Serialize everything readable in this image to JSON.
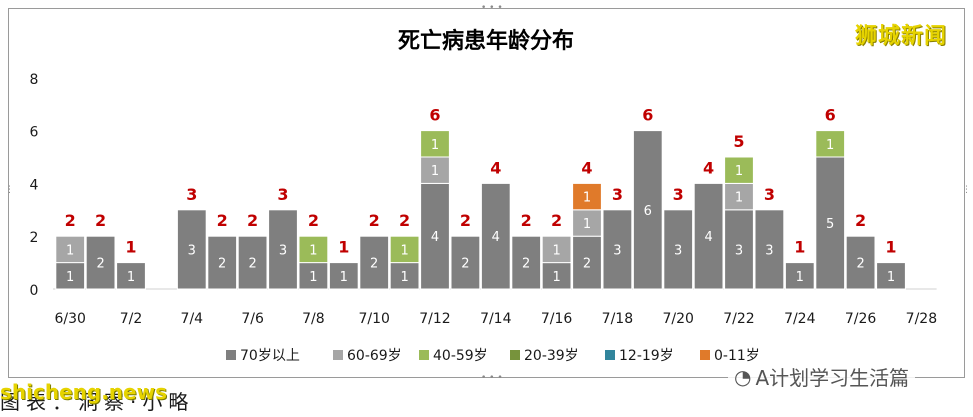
{
  "brand": "狮城新闻",
  "watermark": "shicheng.news",
  "footer_left": "图表：洞察·小略",
  "footer_right": "A计划学习生活篇",
  "chart_data": {
    "type": "bar",
    "stacked": true,
    "title": "死亡病患年龄分布",
    "xlabel": "",
    "ylabel": "",
    "ylim": [
      0,
      8
    ],
    "yticks": [
      0,
      2,
      4,
      6,
      8
    ],
    "grid": false,
    "legend": "bottom",
    "categories": [
      "6/30",
      "7/1",
      "7/2",
      "7/3",
      "7/4",
      "7/5",
      "7/6",
      "7/7",
      "7/8",
      "7/9",
      "7/10",
      "7/11",
      "7/12",
      "7/13",
      "7/14",
      "7/15",
      "7/16",
      "7/17",
      "7/18",
      "7/19",
      "7/20",
      "7/21",
      "7/22",
      "7/23",
      "7/24",
      "7/25",
      "7/26",
      "7/27",
      "7/28"
    ],
    "tick_labels": [
      "6/30",
      "",
      "7/2",
      "",
      "7/4",
      "",
      "7/6",
      "",
      "7/8",
      "",
      "7/10",
      "",
      "7/12",
      "",
      "7/14",
      "",
      "7/16",
      "",
      "7/18",
      "",
      "7/20",
      "",
      "7/22",
      "",
      "7/24",
      "",
      "7/26",
      "",
      "7/28"
    ],
    "totals": [
      2,
      2,
      1,
      null,
      3,
      2,
      2,
      3,
      2,
      1,
      2,
      2,
      6,
      2,
      4,
      2,
      2,
      4,
      3,
      6,
      3,
      4,
      5,
      3,
      1,
      6,
      2,
      1,
      null
    ],
    "series": [
      {
        "name": "70岁以上",
        "color": "#7f7f7f",
        "values": [
          1,
          2,
          1,
          0,
          3,
          2,
          2,
          3,
          1,
          1,
          2,
          1,
          4,
          2,
          4,
          2,
          1,
          2,
          3,
          6,
          3,
          4,
          3,
          3,
          1,
          5,
          2,
          1,
          0
        ]
      },
      {
        "name": "60-69岁",
        "color": "#a6a6a6",
        "values": [
          1,
          0,
          0,
          0,
          0,
          0,
          0,
          0,
          0,
          0,
          0,
          0,
          1,
          0,
          0,
          0,
          1,
          1,
          0,
          0,
          0,
          0,
          1,
          0,
          0,
          0,
          0,
          0,
          0
        ]
      },
      {
        "name": "40-59岁",
        "color": "#9bbb59",
        "values": [
          0,
          0,
          0,
          0,
          0,
          0,
          0,
          0,
          1,
          0,
          0,
          1,
          1,
          0,
          0,
          0,
          0,
          0,
          0,
          0,
          0,
          0,
          1,
          0,
          0,
          1,
          0,
          0,
          0
        ]
      },
      {
        "name": "20-39岁",
        "color": "#77933c",
        "values": [
          0,
          0,
          0,
          0,
          0,
          0,
          0,
          0,
          0,
          0,
          0,
          0,
          0,
          0,
          0,
          0,
          0,
          0,
          0,
          0,
          0,
          0,
          0,
          0,
          0,
          0,
          0,
          0,
          0
        ]
      },
      {
        "name": "12-19岁",
        "color": "#31859c",
        "values": [
          0,
          0,
          0,
          0,
          0,
          0,
          0,
          0,
          0,
          0,
          0,
          0,
          0,
          0,
          0,
          0,
          0,
          0,
          0,
          0,
          0,
          0,
          0,
          0,
          0,
          0,
          0,
          0,
          0
        ]
      },
      {
        "name": "0-11岁",
        "color": "#e07a2a",
        "values": [
          0,
          0,
          0,
          0,
          0,
          0,
          0,
          0,
          0,
          0,
          0,
          0,
          0,
          0,
          0,
          0,
          0,
          1,
          0,
          0,
          0,
          0,
          0,
          0,
          0,
          0,
          0,
          0,
          0
        ]
      }
    ]
  }
}
